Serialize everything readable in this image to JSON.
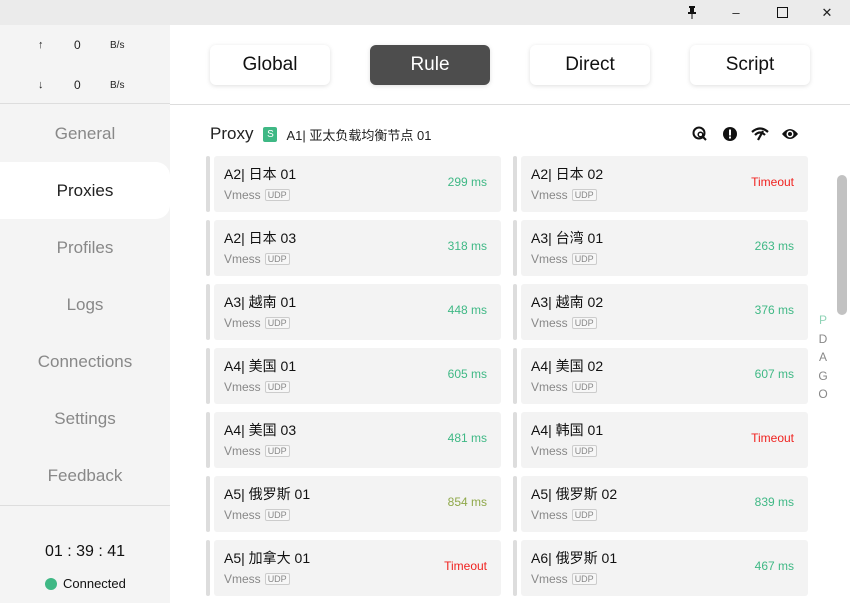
{
  "window": {
    "controls": [
      {
        "name": "pin-icon",
        "glyph": "📌"
      },
      {
        "name": "minimize-icon",
        "glyph": "–"
      },
      {
        "name": "maximize-icon",
        "glyph": "☐"
      },
      {
        "name": "close-icon",
        "glyph": "✕"
      }
    ]
  },
  "speed": {
    "up_arrow": "↑",
    "up_value": "0",
    "up_unit": "B/s",
    "down_arrow": "↓",
    "down_value": "0",
    "down_unit": "B/s"
  },
  "nav": [
    {
      "label": "General"
    },
    {
      "label": "Proxies",
      "active": true
    },
    {
      "label": "Profiles"
    },
    {
      "label": "Logs"
    },
    {
      "label": "Connections"
    },
    {
      "label": "Settings"
    },
    {
      "label": "Feedback"
    }
  ],
  "status": {
    "time": "01 : 39 : 41",
    "state": "Connected",
    "color": "#3fb885"
  },
  "modes": [
    {
      "label": "Global"
    },
    {
      "label": "Rule",
      "active": true
    },
    {
      "label": "Direct"
    },
    {
      "label": "Script"
    }
  ],
  "proxy_group": {
    "title": "Proxy",
    "badge": "S",
    "selected": "A1| 亚太负载均衡节点 01",
    "icons": [
      "search-location-icon",
      "alert-icon",
      "wifi-speed-icon",
      "eye-icon"
    ]
  },
  "proxies": [
    {
      "name": "A2| 日本 01",
      "type": "Vmess",
      "tag": "UDP",
      "latency": "299 ms"
    },
    {
      "name": "A2| 日本 02",
      "type": "Vmess",
      "tag": "UDP",
      "latency": "Timeout"
    },
    {
      "name": "A2| 日本 03",
      "type": "Vmess",
      "tag": "UDP",
      "latency": "318 ms"
    },
    {
      "name": "A3| 台湾 01",
      "type": "Vmess",
      "tag": "UDP",
      "latency": "263 ms"
    },
    {
      "name": "A3| 越南 01",
      "type": "Vmess",
      "tag": "UDP",
      "latency": "448 ms"
    },
    {
      "name": "A3| 越南 02",
      "type": "Vmess",
      "tag": "UDP",
      "latency": "376 ms"
    },
    {
      "name": "A4| 美国 01",
      "type": "Vmess",
      "tag": "UDP",
      "latency": "605 ms"
    },
    {
      "name": "A4| 美国 02",
      "type": "Vmess",
      "tag": "UDP",
      "latency": "607 ms"
    },
    {
      "name": "A4| 美国 03",
      "type": "Vmess",
      "tag": "UDP",
      "latency": "481 ms"
    },
    {
      "name": "A4| 韩国 01",
      "type": "Vmess",
      "tag": "UDP",
      "latency": "Timeout"
    },
    {
      "name": "A5| 俄罗斯 01",
      "type": "Vmess",
      "tag": "UDP",
      "latency": "854 ms"
    },
    {
      "name": "A5| 俄罗斯 02",
      "type": "Vmess",
      "tag": "UDP",
      "latency": "839 ms"
    },
    {
      "name": "A5| 加拿大 01",
      "type": "Vmess",
      "tag": "UDP",
      "latency": "Timeout"
    },
    {
      "name": "A6| 俄罗斯 01",
      "type": "Vmess",
      "tag": "UDP",
      "latency": "467 ms"
    }
  ],
  "colors": {
    "fast": "#3fb885",
    "slow": "#8fa84a",
    "timeout": "#f0221f"
  },
  "index_letters": [
    "P",
    "D",
    "A",
    "G",
    "O"
  ]
}
